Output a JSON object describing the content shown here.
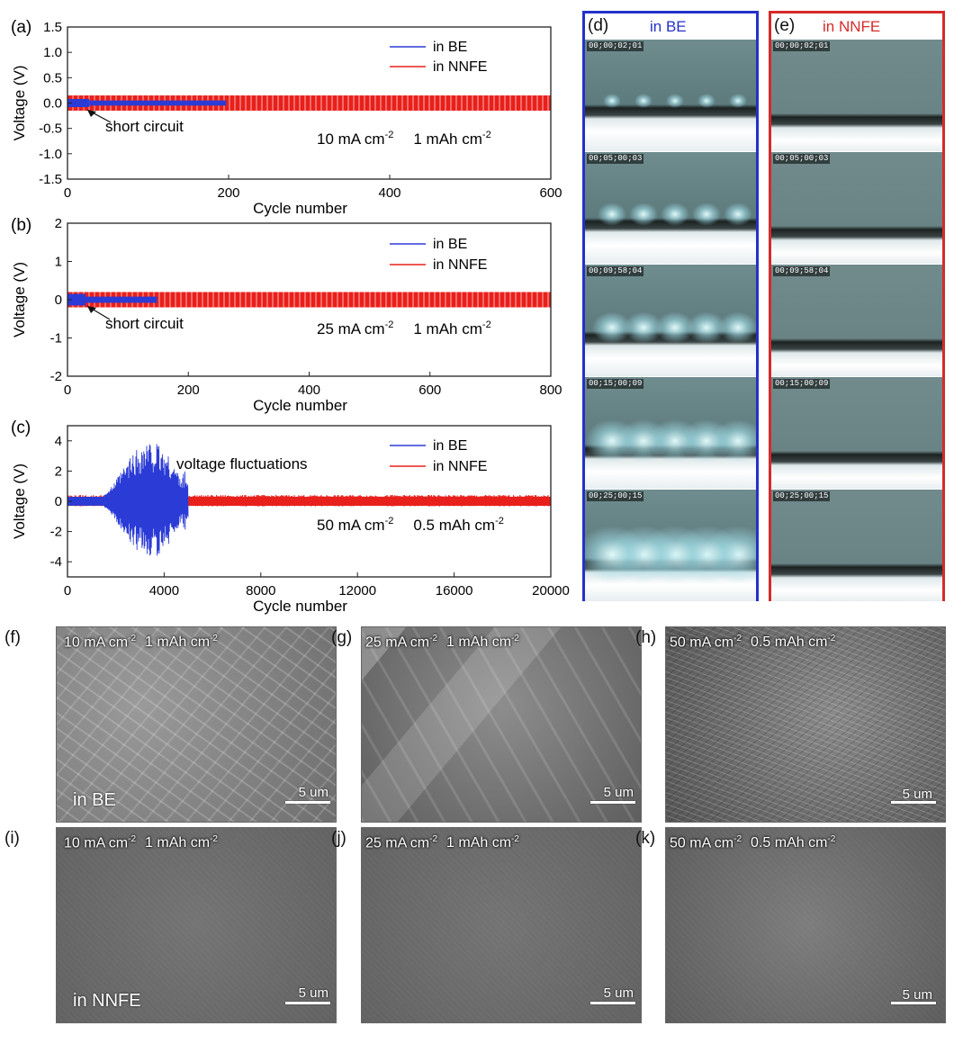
{
  "chart_data": [
    {
      "type": "line",
      "panel": "(a)",
      "xlabel": "Cycle number",
      "ylabel": "Voltage (V)",
      "xlim": [
        0,
        600
      ],
      "ylim": [
        -1.5,
        1.5
      ],
      "xticks": [
        0,
        200,
        400,
        600
      ],
      "xtick_labels": [
        "0",
        "200",
        "400",
        "600"
      ],
      "yticks": [
        -1.5,
        -1.0,
        -0.5,
        0.0,
        0.5,
        1.0,
        1.5
      ],
      "ytick_labels": [
        "-1.5",
        "-1.0",
        "-0.5",
        "0.0",
        "0.5",
        "1.0",
        "1.5"
      ],
      "series": [
        {
          "name": "in BE",
          "color": "#2b3bd6",
          "x_range": [
            0,
            197
          ],
          "amplitude": [
            0.08,
            0.05
          ]
        },
        {
          "name": "in NNFE",
          "color": "#e8201c",
          "x_range": [
            0,
            600
          ],
          "amplitude": [
            0.15,
            0.15
          ]
        }
      ],
      "annotations": [
        {
          "text": "short circuit",
          "x": 27,
          "y": -0.05
        }
      ],
      "condition": {
        "current": "10 mA cm",
        "exp1": "-2",
        "capacity": "1 mAh cm",
        "exp2": "-2"
      },
      "legend_position": "top-right"
    },
    {
      "type": "line",
      "panel": "(b)",
      "xlabel": "Cycle number",
      "ylabel": "Voltage (V)",
      "xlim": [
        0,
        800
      ],
      "ylim": [
        -2,
        2
      ],
      "xticks": [
        0,
        200,
        400,
        600,
        800
      ],
      "xtick_labels": [
        "0",
        "200",
        "400",
        "600",
        "800"
      ],
      "yticks": [
        -2,
        -1,
        0,
        1,
        2
      ],
      "ytick_labels": [
        "-2",
        "-1",
        "0",
        "1",
        "2"
      ],
      "series": [
        {
          "name": "in BE",
          "color": "#2b3bd6",
          "x_range": [
            0,
            148
          ],
          "amplitude": [
            0.15,
            0.08
          ]
        },
        {
          "name": "in NNFE",
          "color": "#e8201c",
          "x_range": [
            0,
            800
          ],
          "amplitude": [
            0.2,
            0.22
          ]
        }
      ],
      "annotations": [
        {
          "text": "short circuit",
          "x": 30,
          "y": -0.05
        }
      ],
      "condition": {
        "current": "25 mA cm",
        "exp1": "-2",
        "capacity": "1 mAh cm",
        "exp2": "-2"
      },
      "legend_position": "top-right"
    },
    {
      "type": "line",
      "panel": "(c)",
      "xlabel": "Cycle number",
      "ylabel": "Voltage (V)",
      "xlim": [
        0,
        20000
      ],
      "ylim": [
        -5,
        5
      ],
      "xticks": [
        0,
        4000,
        8000,
        12000,
        16000,
        20000
      ],
      "xtick_labels": [
        "0",
        "4000",
        "8000",
        "12000",
        "16000",
        "20000"
      ],
      "yticks": [
        -4,
        -2,
        0,
        2,
        4
      ],
      "ytick_labels": [
        "-4",
        "-2",
        "0",
        "2",
        "4"
      ],
      "series": [
        {
          "name": "in BE",
          "color": "#2b3bd6",
          "x_range": [
            0,
            5000
          ],
          "amplitude": [
            0.3,
            4.2
          ],
          "fluctuation_start": 1500
        },
        {
          "name": "in NNFE",
          "color": "#e8201c",
          "x_range": [
            0,
            20000
          ],
          "amplitude": [
            0.3,
            0.45
          ]
        }
      ],
      "annotations": [
        {
          "text": "voltage fluctuations",
          "x": 4400,
          "y": 2.3
        }
      ],
      "condition": {
        "current": "50 mA cm",
        "exp1": "-2",
        "capacity": "0.5 mAh cm",
        "exp2": "-2"
      },
      "legend_position": "top-right"
    }
  ],
  "video_panels": [
    {
      "letter": "(d)",
      "title": "in BE",
      "color": "#2431c9"
    },
    {
      "letter": "(e)",
      "title": "in NNFE",
      "color": "#d62a2a"
    }
  ],
  "timestamps": [
    "00;00;02;01",
    "00;05;00;03",
    "00;09;58;04",
    "00;15;00;09",
    "00;25;00;15"
  ],
  "sem_rows": [
    {
      "label": "in BE",
      "panels": [
        {
          "letter": "(f)",
          "current": "10 mA cm",
          "exp1": "-2",
          "capacity": "1 mAh cm",
          "exp2": "-2",
          "scale": "5 um"
        },
        {
          "letter": "(g)",
          "current": "25 mA cm",
          "exp1": "-2",
          "capacity": "1 mAh cm",
          "exp2": "-2",
          "scale": "5 um"
        },
        {
          "letter": "(h)",
          "current": "50 mA cm",
          "exp1": "-2",
          "capacity": "0.5 mAh cm",
          "exp2": "-2",
          "scale": "5 um"
        }
      ]
    },
    {
      "label": "in NNFE",
      "panels": [
        {
          "letter": "(i)",
          "current": "10 mA cm",
          "exp1": "-2",
          "capacity": "1 mAh cm",
          "exp2": "-2",
          "scale": "5 um"
        },
        {
          "letter": "(j)",
          "current": "25 mA cm",
          "exp1": "-2",
          "capacity": "1 mAh cm",
          "exp2": "-2",
          "scale": "5 um"
        },
        {
          "letter": "(k)",
          "current": "50 mA cm",
          "exp1": "-2",
          "capacity": "0.5 mAh cm",
          "exp2": "-2",
          "scale": "5 um"
        }
      ]
    }
  ]
}
